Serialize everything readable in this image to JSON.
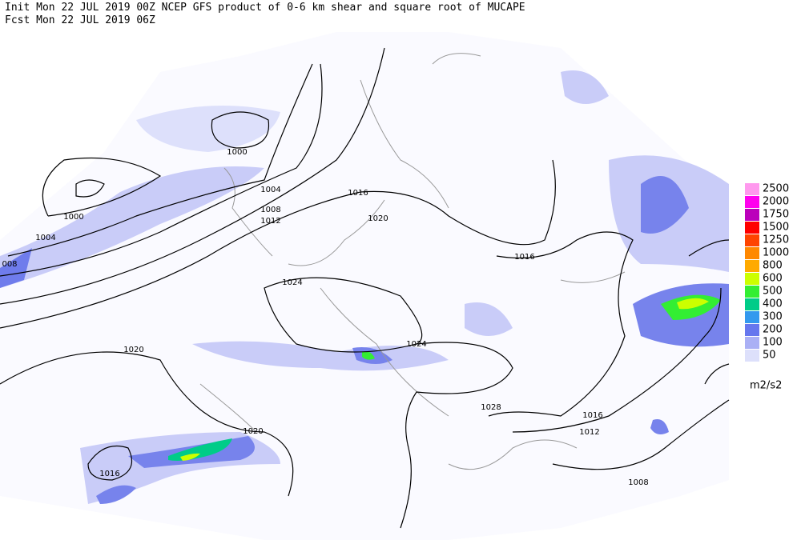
{
  "header": {
    "line1": "Init  Mon 22 JUL 2019 00Z  NCEP GFS product of 0-6 km shear and square root of MUCAPE",
    "line2": "Fcst Mon 22 JUL 2019 06Z"
  },
  "legend": {
    "items": [
      {
        "label": "2500",
        "color": "#ff99ee"
      },
      {
        "label": "2000",
        "color": "#ff00ee"
      },
      {
        "label": "1750",
        "color": "#bb00bb"
      },
      {
        "label": "1500",
        "color": "#ff0000"
      },
      {
        "label": "1250",
        "color": "#ff4400"
      },
      {
        "label": "1000",
        "color": "#ff8800"
      },
      {
        "label": "800",
        "color": "#ffaa00"
      },
      {
        "label": "600",
        "color": "#ccff00"
      },
      {
        "label": "500",
        "color": "#33ee33"
      },
      {
        "label": "400",
        "color": "#00cc88"
      },
      {
        "label": "300",
        "color": "#3399ee"
      },
      {
        "label": "200",
        "color": "#6677ee"
      },
      {
        "label": "100",
        "color": "#aab0f5"
      },
      {
        "label": "50",
        "color": "#dde0fb"
      }
    ],
    "unit": "m2/s2"
  },
  "contour_labels": [
    "1000",
    "1000",
    "1004",
    "1004",
    "1008",
    "008",
    "1012",
    "1016",
    "1020",
    "1024",
    "1024",
    "1020",
    "1016",
    "1020",
    "1016",
    "1028",
    "1016",
    "1012",
    "1008"
  ]
}
